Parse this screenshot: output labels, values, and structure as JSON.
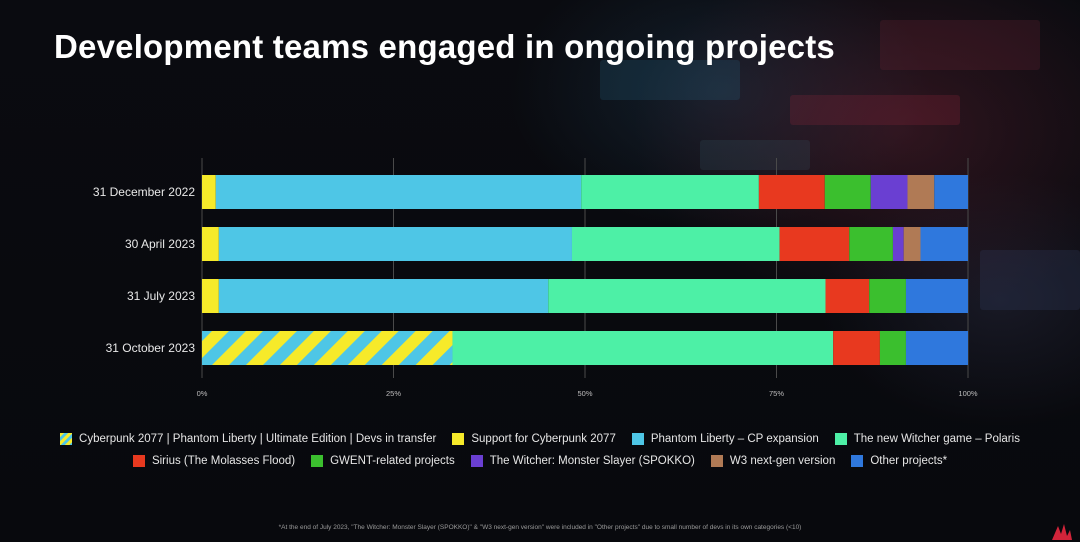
{
  "title": "Development teams engaged in ongoing projects",
  "footnote": "*At the end of July 2023, \"The Witcher: Monster Slayer (SPOKKO)\" & \"W3 next-gen version\" were included in \"Other projects\" due to small number of devs in its own categories (<10)",
  "colors": {
    "transfer_a": "#f6ea2a",
    "transfer_b": "#4ec6e6",
    "support": "#f6ea2a",
    "phantom": "#4ec6e6",
    "polaris": "#4df0a6",
    "sirius": "#e8391f",
    "gwent": "#3bbf2e",
    "spokko": "#6a3fd2",
    "w3ng": "#b07a55",
    "other": "#2f78dd",
    "grid": "#4a4a4a",
    "tick": "#bdbdbd"
  },
  "chart_data": {
    "type": "bar",
    "orientation": "horizontal",
    "stacked": true,
    "normalized": true,
    "categories": [
      "31 December 2022",
      "30 April 2023",
      "31 July 2023",
      "31 October 2023"
    ],
    "xlim": [
      0,
      100
    ],
    "xticks": [
      0,
      25,
      50,
      75,
      100
    ],
    "xtick_labels": [
      "0%",
      "25%",
      "50%",
      "75%",
      "100%"
    ],
    "grid": true,
    "legend_position": "bottom",
    "series": [
      {
        "key": "transfer",
        "name": "Cyberpunk 2077 | Phantom Liberty | Ultimate Edition | Devs in transfer",
        "pattern": "striped",
        "values": [
          0,
          0,
          0,
          32.7
        ]
      },
      {
        "key": "support",
        "name": "Support for Cyberpunk 2077",
        "values": [
          1.8,
          2.2,
          2.2,
          0
        ]
      },
      {
        "key": "phantom",
        "name": "Phantom Liberty – CP expansion",
        "values": [
          47.7,
          46.1,
          43.0,
          0
        ]
      },
      {
        "key": "polaris",
        "name": "The new Witcher game – Polaris",
        "values": [
          23.2,
          27.1,
          36.2,
          49.7
        ]
      },
      {
        "key": "sirius",
        "name": "Sirius (The Molasses Flood)",
        "values": [
          8.6,
          9.1,
          5.7,
          6.1
        ]
      },
      {
        "key": "gwent",
        "name": "GWENT-related projects",
        "values": [
          6.0,
          5.7,
          4.8,
          3.4
        ]
      },
      {
        "key": "spokko",
        "name": "The Witcher: Monster Slayer (SPOKKO)",
        "values": [
          4.8,
          1.4,
          0,
          0
        ]
      },
      {
        "key": "w3ng",
        "name": "W3 next-gen version",
        "values": [
          3.5,
          2.2,
          0,
          0
        ]
      },
      {
        "key": "other",
        "name": "Other projects*",
        "values": [
          4.4,
          6.2,
          8.1,
          8.1
        ]
      }
    ]
  }
}
